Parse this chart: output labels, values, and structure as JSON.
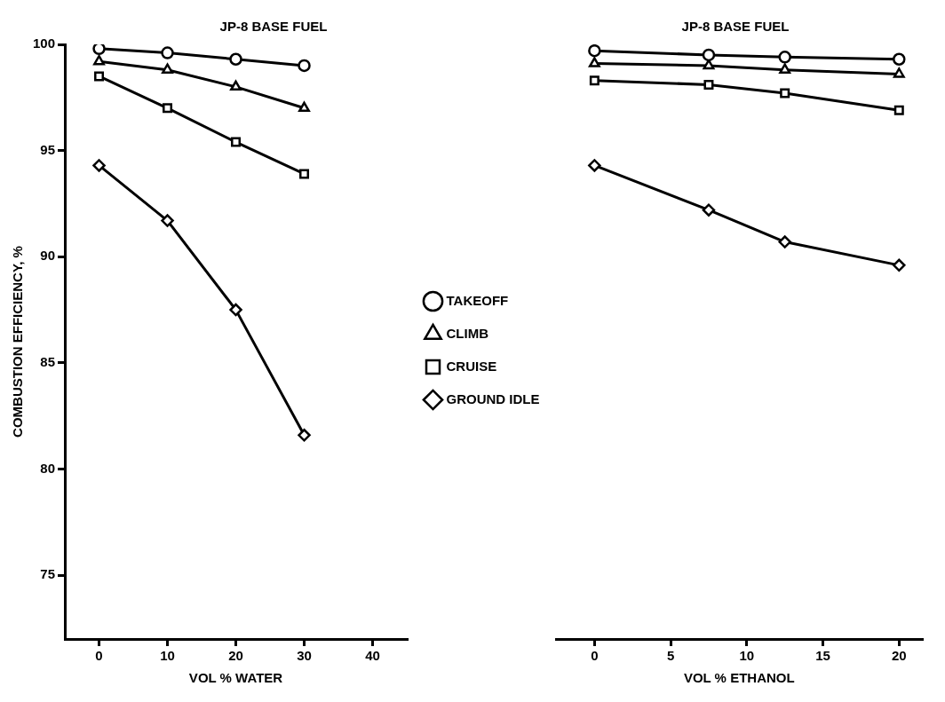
{
  "chart_data": [
    {
      "type": "line",
      "title": "JP-8 BASE FUEL",
      "xlabel": "VOL % WATER",
      "ylabel": "COMBUSTION EFFICIENCY, %",
      "xlim": [
        -5,
        45
      ],
      "xticks": [
        0,
        10,
        20,
        30,
        40
      ],
      "ylim": [
        72,
        100
      ],
      "yticks": [
        75,
        80,
        85,
        90,
        95,
        100
      ],
      "grid": false,
      "legend": "right",
      "line_style": "solid",
      "x": [
        0,
        10,
        20,
        30
      ],
      "series": [
        {
          "name": "TAKEOFF",
          "color": "#000000",
          "marker": "circle",
          "values": [
            99.8,
            99.6,
            99.3,
            99.0
          ]
        },
        {
          "name": "CLIMB",
          "color": "#000000",
          "marker": "triangle",
          "values": [
            99.2,
            98.8,
            98.0,
            97.0
          ]
        },
        {
          "name": "CRUISE",
          "color": "#000000",
          "marker": "square",
          "values": [
            98.5,
            97.0,
            95.4,
            93.9
          ]
        },
        {
          "name": "GROUND IDLE",
          "color": "#000000",
          "marker": "diamond",
          "values": [
            94.3,
            91.7,
            87.5,
            81.6
          ]
        }
      ]
    },
    {
      "type": "line",
      "title": "JP-8 BASE FUEL",
      "xlabel": "VOL % ETHANOL",
      "xlim": [
        -2.5,
        21.5
      ],
      "xticks": [
        0,
        5,
        10,
        15,
        20
      ],
      "ylim": [
        72,
        100
      ],
      "yticks": [
        75,
        80,
        85,
        90,
        95,
        100
      ],
      "tick_labels": "x",
      "grid": false,
      "line_style": "solid",
      "x": [
        0,
        7.5,
        12.5,
        20
      ],
      "series": [
        {
          "color": "#000000",
          "marker": "circle",
          "values": [
            99.7,
            99.5,
            99.4,
            99.3
          ]
        },
        {
          "color": "#000000",
          "marker": "triangle",
          "values": [
            99.1,
            99.0,
            98.8,
            98.6
          ]
        },
        {
          "color": "#000000",
          "marker": "square",
          "values": [
            98.3,
            98.1,
            97.7,
            96.9
          ]
        },
        {
          "color": "#000000",
          "marker": "diamond",
          "values": [
            94.3,
            92.2,
            90.7,
            89.6
          ]
        }
      ]
    }
  ]
}
